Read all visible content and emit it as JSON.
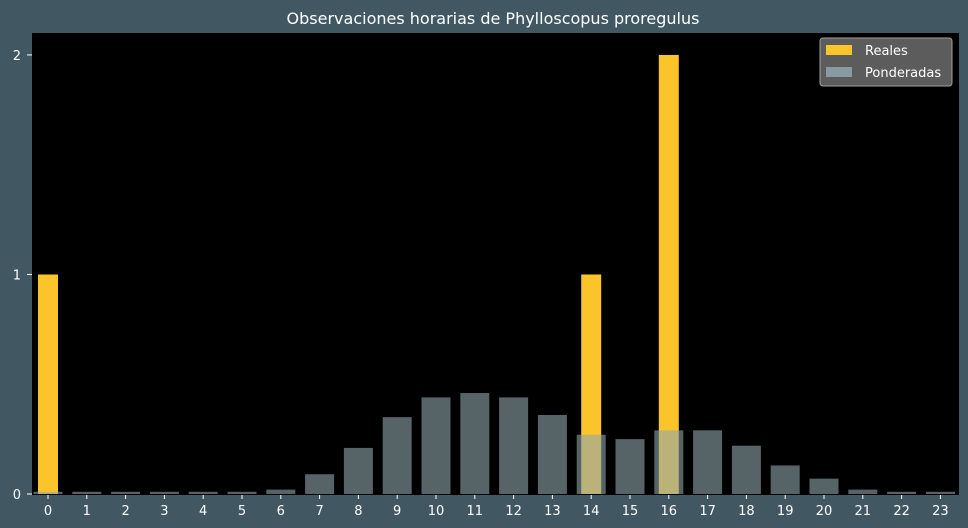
{
  "chart_data": {
    "type": "bar",
    "title": "Observaciones horarias de Phylloscopus proregulus",
    "xlabel": "",
    "ylabel": "",
    "categories": [
      "0",
      "1",
      "2",
      "3",
      "4",
      "5",
      "6",
      "7",
      "8",
      "9",
      "10",
      "11",
      "12",
      "13",
      "14",
      "15",
      "16",
      "17",
      "18",
      "19",
      "20",
      "21",
      "22",
      "23"
    ],
    "series": [
      {
        "name": "Reales",
        "color": "#fcc42b",
        "values": [
          1,
          0,
          0,
          0,
          0,
          0,
          0,
          0,
          0,
          0,
          0,
          0,
          0,
          0,
          1,
          0,
          2,
          0,
          0,
          0,
          0,
          0,
          0,
          0
        ]
      },
      {
        "name": "Ponderadas",
        "color": "#8fa6ad",
        "values": [
          0.01,
          0.01,
          0.01,
          0.01,
          0.01,
          0.01,
          0.02,
          0.09,
          0.21,
          0.35,
          0.44,
          0.46,
          0.44,
          0.36,
          0.27,
          0.25,
          0.29,
          0.29,
          0.22,
          0.13,
          0.07,
          0.02,
          0.01,
          0.01
        ]
      }
    ],
    "yticks": [
      0,
      1,
      2
    ],
    "ylim": [
      0,
      2.1
    ],
    "grid": false,
    "legend_position": "top-right",
    "background_color": "#415863",
    "plot_background_color": "#000000"
  }
}
